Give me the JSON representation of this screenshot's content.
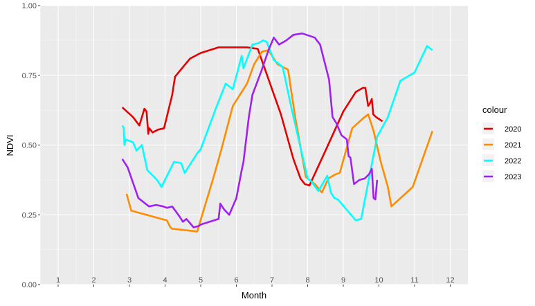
{
  "chart_data": {
    "type": "line",
    "title": "",
    "xlabel": "Month",
    "ylabel": "NDVI",
    "x_tick_labels": [
      "1",
      "2",
      "3",
      "4",
      "5",
      "6",
      "7",
      "8",
      "9",
      "10",
      "11",
      "12"
    ],
    "y_tick_labels": [
      "0.00",
      "0.25",
      "0.50",
      "0.75",
      "1.00"
    ],
    "xlim": [
      0.5,
      12.5
    ],
    "ylim": [
      0,
      1
    ],
    "grid": true,
    "legend": {
      "title": "colour",
      "position": "right"
    },
    "series": [
      {
        "name": "2020",
        "color": "#e60000",
        "points": [
          [
            2.8,
            0.635
          ],
          [
            3.1,
            0.6
          ],
          [
            3.28,
            0.57
          ],
          [
            3.42,
            0.63
          ],
          [
            3.48,
            0.62
          ],
          [
            3.53,
            0.54
          ],
          [
            3.56,
            0.56
          ],
          [
            3.65,
            0.545
          ],
          [
            3.8,
            0.555
          ],
          [
            3.97,
            0.56
          ],
          [
            4.2,
            0.68
          ],
          [
            4.28,
            0.745
          ],
          [
            4.7,
            0.81
          ],
          [
            5.0,
            0.83
          ],
          [
            5.5,
            0.85
          ],
          [
            6.0,
            0.85
          ],
          [
            6.3,
            0.85
          ],
          [
            6.6,
            0.845
          ],
          [
            7.25,
            0.61
          ],
          [
            7.6,
            0.45
          ],
          [
            7.8,
            0.38
          ],
          [
            7.92,
            0.36
          ],
          [
            8.05,
            0.355
          ],
          [
            8.5,
            0.48
          ],
          [
            9.0,
            0.62
          ],
          [
            9.35,
            0.69
          ],
          [
            9.55,
            0.705
          ],
          [
            9.62,
            0.705
          ],
          [
            9.7,
            0.64
          ],
          [
            9.75,
            0.65
          ],
          [
            9.8,
            0.665
          ],
          [
            9.84,
            0.61
          ],
          [
            9.92,
            0.6
          ],
          [
            10.1,
            0.585
          ]
        ]
      },
      {
        "name": "2021",
        "color": "#ff8c00",
        "points": [
          [
            2.92,
            0.325
          ],
          [
            3.05,
            0.265
          ],
          [
            3.9,
            0.235
          ],
          [
            4.05,
            0.23
          ],
          [
            4.15,
            0.205
          ],
          [
            4.2,
            0.2
          ],
          [
            4.9,
            0.19
          ],
          [
            5.35,
            0.38
          ],
          [
            5.55,
            0.47
          ],
          [
            5.9,
            0.64
          ],
          [
            6.3,
            0.72
          ],
          [
            6.5,
            0.79
          ],
          [
            6.72,
            0.835
          ],
          [
            6.9,
            0.84
          ],
          [
            7.15,
            0.79
          ],
          [
            7.45,
            0.77
          ],
          [
            7.65,
            0.6
          ],
          [
            7.95,
            0.385
          ],
          [
            8.2,
            0.36
          ],
          [
            8.4,
            0.33
          ],
          [
            8.58,
            0.38
          ],
          [
            8.78,
            0.395
          ],
          [
            8.9,
            0.4
          ],
          [
            9.25,
            0.56
          ],
          [
            9.55,
            0.595
          ],
          [
            9.7,
            0.61
          ],
          [
            9.85,
            0.55
          ],
          [
            10.05,
            0.44
          ],
          [
            10.25,
            0.35
          ],
          [
            10.35,
            0.28
          ],
          [
            10.95,
            0.35
          ],
          [
            11.5,
            0.55
          ]
        ]
      },
      {
        "name": "2022",
        "color": "#00ffff",
        "points": [
          [
            2.8,
            0.57
          ],
          [
            2.84,
            0.56
          ],
          [
            2.86,
            0.5
          ],
          [
            2.9,
            0.52
          ],
          [
            3.1,
            0.51
          ],
          [
            3.2,
            0.48
          ],
          [
            3.35,
            0.5
          ],
          [
            3.5,
            0.41
          ],
          [
            3.62,
            0.395
          ],
          [
            3.7,
            0.385
          ],
          [
            3.8,
            0.37
          ],
          [
            3.9,
            0.35
          ],
          [
            4.25,
            0.44
          ],
          [
            4.45,
            0.435
          ],
          [
            4.55,
            0.4
          ],
          [
            4.65,
            0.42
          ],
          [
            4.9,
            0.47
          ],
          [
            5.0,
            0.485
          ],
          [
            5.45,
            0.64
          ],
          [
            5.7,
            0.72
          ],
          [
            5.9,
            0.7
          ],
          [
            6.15,
            0.82
          ],
          [
            6.2,
            0.775
          ],
          [
            6.45,
            0.86
          ],
          [
            6.62,
            0.865
          ],
          [
            6.75,
            0.875
          ],
          [
            6.85,
            0.87
          ],
          [
            7.05,
            0.805
          ],
          [
            7.3,
            0.78
          ],
          [
            7.55,
            0.63
          ],
          [
            8.0,
            0.38
          ],
          [
            8.1,
            0.37
          ],
          [
            8.3,
            0.335
          ],
          [
            8.55,
            0.39
          ],
          [
            8.65,
            0.33
          ],
          [
            8.75,
            0.31
          ],
          [
            8.85,
            0.305
          ],
          [
            8.95,
            0.29
          ],
          [
            9.35,
            0.23
          ],
          [
            9.5,
            0.235
          ],
          [
            9.95,
            0.53
          ],
          [
            10.25,
            0.6
          ],
          [
            10.6,
            0.73
          ],
          [
            11.0,
            0.76
          ],
          [
            11.35,
            0.855
          ],
          [
            11.5,
            0.84
          ]
        ]
      },
      {
        "name": "2023",
        "color": "#a020f0",
        "points": [
          [
            2.8,
            0.45
          ],
          [
            2.95,
            0.42
          ],
          [
            3.25,
            0.31
          ],
          [
            3.55,
            0.28
          ],
          [
            3.75,
            0.285
          ],
          [
            3.95,
            0.28
          ],
          [
            4.05,
            0.275
          ],
          [
            4.2,
            0.28
          ],
          [
            4.4,
            0.245
          ],
          [
            4.5,
            0.225
          ],
          [
            4.6,
            0.235
          ],
          [
            4.8,
            0.205
          ],
          [
            4.95,
            0.21
          ],
          [
            5.0,
            0.215
          ],
          [
            5.5,
            0.235
          ],
          [
            5.55,
            0.29
          ],
          [
            5.65,
            0.27
          ],
          [
            5.8,
            0.25
          ],
          [
            6.0,
            0.31
          ],
          [
            6.15,
            0.41
          ],
          [
            6.2,
            0.44
          ],
          [
            6.35,
            0.6
          ],
          [
            6.45,
            0.68
          ],
          [
            6.7,
            0.765
          ],
          [
            6.9,
            0.84
          ],
          [
            7.05,
            0.885
          ],
          [
            7.2,
            0.86
          ],
          [
            7.4,
            0.875
          ],
          [
            7.6,
            0.895
          ],
          [
            7.85,
            0.9
          ],
          [
            8.2,
            0.885
          ],
          [
            8.35,
            0.86
          ],
          [
            8.6,
            0.735
          ],
          [
            8.7,
            0.6
          ],
          [
            8.8,
            0.58
          ],
          [
            8.95,
            0.535
          ],
          [
            9.1,
            0.52
          ],
          [
            9.15,
            0.46
          ],
          [
            9.2,
            0.455
          ],
          [
            9.3,
            0.36
          ],
          [
            9.45,
            0.375
          ],
          [
            9.6,
            0.38
          ],
          [
            9.72,
            0.395
          ],
          [
            9.8,
            0.415
          ],
          [
            9.85,
            0.31
          ],
          [
            9.9,
            0.305
          ],
          [
            9.95,
            0.375
          ]
        ]
      }
    ]
  }
}
